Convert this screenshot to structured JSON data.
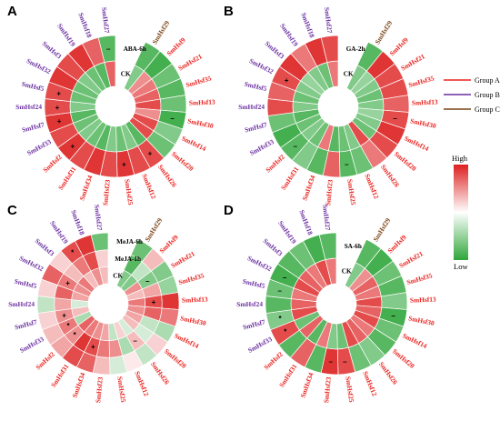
{
  "colors": {
    "groupA": "#e8231f",
    "groupB": "#6a2fa0",
    "groupC": "#7a4316",
    "high": "#dd1f1f",
    "low": "#2ea63a"
  },
  "legend": {
    "items": [
      {
        "label": "Group A",
        "color": "#e8231f"
      },
      {
        "label": "Group B",
        "color": "#6a2fa0"
      },
      {
        "label": "Group C",
        "color": "#7a4316"
      }
    ],
    "high_label": "High",
    "low_label": "Low"
  },
  "genes": [
    {
      "name": "SmHsf29",
      "group": "C"
    },
    {
      "name": "SmHsf9",
      "group": "A"
    },
    {
      "name": "SmHsf21",
      "group": "A"
    },
    {
      "name": "SmHsf35",
      "group": "A"
    },
    {
      "name": "SmHsf13",
      "group": "A"
    },
    {
      "name": "SmHsf30",
      "group": "A"
    },
    {
      "name": "SmHsf14",
      "group": "A"
    },
    {
      "name": "SmHsf20",
      "group": "A"
    },
    {
      "name": "SmHsf26",
      "group": "A"
    },
    {
      "name": "SmHsf12",
      "group": "A"
    },
    {
      "name": "SmHsf25",
      "group": "A"
    },
    {
      "name": "SmHsf23",
      "group": "A"
    },
    {
      "name": "SmHsf34",
      "group": "A"
    },
    {
      "name": "SmHsf31",
      "group": "A"
    },
    {
      "name": "SmHsf2",
      "group": "A"
    },
    {
      "name": "SmHsf33",
      "group": "B"
    },
    {
      "name": "SmHsf7",
      "group": "B"
    },
    {
      "name": "SmHsf24",
      "group": "B"
    },
    {
      "name": "SmHsf5",
      "group": "B"
    },
    {
      "name": "SmHsf32",
      "group": "B"
    },
    {
      "name": "SmHsf3",
      "group": "B"
    },
    {
      "name": "SmHsf19",
      "group": "B"
    },
    {
      "name": "SmHsf18",
      "group": "B"
    },
    {
      "name": "SmHsf27",
      "group": "B"
    }
  ],
  "panels": [
    {
      "letter": "A",
      "rings": [
        "CK",
        "ABA-6h"
      ],
      "values": [
        [
          -0.6,
          -0.8
        ],
        [
          0.5,
          -0.9
        ],
        [
          0.6,
          -0.7
        ],
        [
          0.7,
          -0.8
        ],
        [
          0.8,
          -0.7
        ],
        [
          0.5,
          -0.9
        ],
        [
          0.8,
          -0.6
        ],
        [
          0.8,
          -0.7
        ],
        [
          -0.8,
          0.8
        ],
        [
          -0.6,
          0.8
        ],
        [
          -0.7,
          0.9
        ],
        [
          -0.6,
          0.8
        ],
        [
          -0.8,
          0.9
        ],
        [
          -0.7,
          0.8
        ],
        [
          -0.6,
          0.9
        ],
        [
          -0.7,
          0.8
        ],
        [
          -0.8,
          0.9
        ],
        [
          -0.6,
          0.8
        ],
        [
          -0.7,
          0.8
        ],
        [
          -0.7,
          0.9
        ],
        [
          -0.6,
          0.8
        ],
        [
          -0.7,
          0.9
        ],
        [
          -0.8,
          0.7
        ],
        [
          0.7,
          -0.8
        ]
      ],
      "sig": [
        [
          "",
          ""
        ],
        [
          "",
          ""
        ],
        [
          "",
          ""
        ],
        [
          "",
          ""
        ],
        [
          "",
          ""
        ],
        [
          "",
          "–"
        ],
        [
          "",
          ""
        ],
        [
          "",
          ""
        ],
        [
          "",
          "+"
        ],
        [
          "",
          ""
        ],
        [
          "",
          "+"
        ],
        [
          "",
          ""
        ],
        [
          "",
          ""
        ],
        [
          "",
          ""
        ],
        [
          "",
          "+"
        ],
        [
          "",
          ""
        ],
        [
          "",
          "+"
        ],
        [
          "",
          "+"
        ],
        [
          "",
          "+"
        ],
        [
          "",
          ""
        ],
        [
          "",
          ""
        ],
        [
          "",
          ""
        ],
        [
          "",
          ""
        ],
        [
          "",
          "–"
        ]
      ]
    },
    {
      "letter": "B",
      "rings": [
        "CK",
        "GA-2h"
      ],
      "values": [
        [
          -0.6,
          -0.8
        ],
        [
          -0.5,
          0.9
        ],
        [
          -0.6,
          0.8
        ],
        [
          -0.7,
          0.8
        ],
        [
          -0.6,
          0.7
        ],
        [
          -0.5,
          0.8
        ],
        [
          -0.6,
          0.9
        ],
        [
          -0.7,
          0.8
        ],
        [
          0.8,
          0.6
        ],
        [
          -0.6,
          -0.7
        ],
        [
          -0.7,
          -0.8
        ],
        [
          -0.8,
          0.7
        ],
        [
          0.6,
          -0.8
        ],
        [
          -0.7,
          -0.6
        ],
        [
          -0.6,
          -0.8
        ],
        [
          -0.7,
          -0.9
        ],
        [
          -0.8,
          -0.7
        ],
        [
          -0.6,
          0.8
        ],
        [
          -0.7,
          0.7
        ],
        [
          -0.6,
          0.8
        ],
        [
          -0.5,
          0.9
        ],
        [
          -0.6,
          0.6
        ],
        [
          -0.7,
          0.9
        ],
        [
          0.6,
          0.8
        ]
      ],
      "sig": [
        [
          "",
          ""
        ],
        [
          "",
          ""
        ],
        [
          "",
          ""
        ],
        [
          "",
          ""
        ],
        [
          "",
          ""
        ],
        [
          "",
          "–"
        ],
        [
          "",
          ""
        ],
        [
          "",
          ""
        ],
        [
          "",
          ""
        ],
        [
          "",
          ""
        ],
        [
          "",
          "–"
        ],
        [
          "",
          ""
        ],
        [
          "",
          ""
        ],
        [
          "",
          ""
        ],
        [
          "",
          "–"
        ],
        [
          "",
          ""
        ],
        [
          "",
          ""
        ],
        [
          "",
          ""
        ],
        [
          "",
          ""
        ],
        [
          "",
          "+"
        ],
        [
          "",
          ""
        ],
        [
          "",
          ""
        ],
        [
          "",
          ""
        ],
        [
          "",
          ""
        ]
      ]
    },
    {
      "letter": "C",
      "rings": [
        "CK",
        "MeJA-1h",
        "MeJA-6h"
      ],
      "values": [
        [
          -0.6,
          -0.8,
          -0.7
        ],
        [
          -0.6,
          -0.3,
          0.3
        ],
        [
          0.5,
          -0.6,
          -0.6
        ],
        [
          0.3,
          0.4,
          -0.5
        ],
        [
          0.6,
          0.8,
          0.9
        ],
        [
          0.5,
          0.7,
          0.6
        ],
        [
          0.4,
          -0.3,
          -0.4
        ],
        [
          0.3,
          -0.2,
          0.2
        ],
        [
          -0.2,
          0.3,
          -0.3
        ],
        [
          0.2,
          -0.4,
          0.1
        ],
        [
          -0.3,
          0.5,
          -0.2
        ],
        [
          0.4,
          0.6,
          0.3
        ],
        [
          0.5,
          0.8,
          0.7
        ],
        [
          0.6,
          0.9,
          0.8
        ],
        [
          0.7,
          0.5,
          0.4
        ],
        [
          -0.4,
          0.6,
          0.3
        ],
        [
          0.3,
          0.5,
          0.2
        ],
        [
          -0.2,
          0.4,
          -0.3
        ],
        [
          0.4,
          0.7,
          0.2
        ],
        [
          0.5,
          0.6,
          0.7
        ],
        [
          0.6,
          0.3,
          0.2
        ],
        [
          0.3,
          0.6,
          0.8
        ],
        [
          0.5,
          0.8,
          0.9
        ],
        [
          0.3,
          0.2,
          -0.7
        ]
      ],
      "sig": [
        [
          "",
          "",
          ""
        ],
        [
          "",
          "",
          ""
        ],
        [
          "",
          "–",
          ""
        ],
        [
          "",
          "",
          ""
        ],
        [
          "",
          "+",
          ""
        ],
        [
          "",
          "",
          ""
        ],
        [
          "",
          "",
          ""
        ],
        [
          "",
          "",
          ""
        ],
        [
          "",
          "–",
          ""
        ],
        [
          "",
          "",
          ""
        ],
        [
          "",
          "",
          ""
        ],
        [
          "",
          "",
          ""
        ],
        [
          "",
          "+",
          ""
        ],
        [
          "",
          "",
          ""
        ],
        [
          "",
          "*",
          ""
        ],
        [
          "",
          "*",
          ""
        ],
        [
          "",
          "+",
          ""
        ],
        [
          "",
          "",
          ""
        ],
        [
          "",
          "",
          ""
        ],
        [
          "",
          "+",
          ""
        ],
        [
          "",
          "",
          ""
        ],
        [
          "",
          "",
          "*"
        ],
        [
          "",
          "",
          ""
        ],
        [
          "",
          "",
          ""
        ]
      ]
    },
    {
      "letter": "D",
      "rings": [
        "CK",
        "SA-6h"
      ],
      "values": [
        [
          -0.6,
          -0.8
        ],
        [
          0.5,
          -0.9
        ],
        [
          0.7,
          -0.7
        ],
        [
          0.6,
          -0.8
        ],
        [
          0.8,
          -0.6
        ],
        [
          0.7,
          -0.9
        ],
        [
          0.8,
          -0.7
        ],
        [
          0.6,
          -0.8
        ],
        [
          0.7,
          -0.6
        ],
        [
          0.8,
          -0.7
        ],
        [
          -0.7,
          0.8
        ],
        [
          -0.6,
          0.9
        ],
        [
          0.6,
          -0.8
        ],
        [
          -0.8,
          0.7
        ],
        [
          0.7,
          -0.8
        ],
        [
          -0.7,
          0.8
        ],
        [
          0.8,
          -0.6
        ],
        [
          0.7,
          -0.8
        ],
        [
          0.6,
          -0.7
        ],
        [
          0.8,
          -0.9
        ],
        [
          0.7,
          -0.8
        ],
        [
          0.6,
          -0.7
        ],
        [
          0.8,
          -0.9
        ],
        [
          0.6,
          -0.8
        ]
      ],
      "sig": [
        [
          "",
          ""
        ],
        [
          "",
          ""
        ],
        [
          "",
          ""
        ],
        [
          "",
          ""
        ],
        [
          "",
          ""
        ],
        [
          "",
          "–"
        ],
        [
          "",
          ""
        ],
        [
          "",
          ""
        ],
        [
          "",
          ""
        ],
        [
          "",
          ""
        ],
        [
          "",
          "–"
        ],
        [
          "",
          "–"
        ],
        [
          "",
          ""
        ],
        [
          "",
          ""
        ],
        [
          "",
          ""
        ],
        [
          "",
          "*"
        ],
        [
          "",
          "*"
        ],
        [
          "",
          ""
        ],
        [
          "",
          "–"
        ],
        [
          "",
          "–"
        ],
        [
          "",
          ""
        ],
        [
          "",
          ""
        ],
        [
          "",
          ""
        ],
        [
          "",
          ""
        ]
      ]
    }
  ]
}
